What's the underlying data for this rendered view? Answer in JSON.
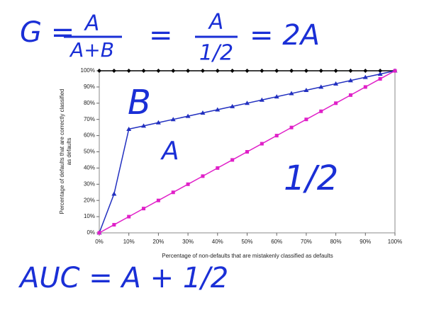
{
  "chart_data": {
    "type": "line",
    "x": [
      0,
      5,
      10,
      15,
      20,
      25,
      30,
      35,
      40,
      45,
      50,
      55,
      60,
      65,
      70,
      75,
      80,
      85,
      90,
      95,
      100
    ],
    "series": [
      {
        "color": "#000000",
        "marker": "diamond",
        "values": [
          100,
          100,
          100,
          100,
          100,
          100,
          100,
          100,
          100,
          100,
          100,
          100,
          100,
          100,
          100,
          100,
          100,
          100,
          100,
          100,
          100
        ]
      },
      {
        "color": "#2230c0",
        "marker": "triangle",
        "values": [
          0,
          24,
          64,
          66,
          68,
          70,
          72,
          74,
          76,
          78,
          80,
          82,
          84,
          86,
          88,
          90,
          92,
          94,
          96,
          98,
          100
        ]
      },
      {
        "color": "#e020c8",
        "marker": "square",
        "values": [
          0,
          5,
          10,
          15,
          20,
          25,
          30,
          35,
          40,
          45,
          50,
          55,
          60,
          65,
          70,
          75,
          80,
          85,
          90,
          95,
          100
        ]
      }
    ],
    "xlim": [
      0,
      100
    ],
    "ylim": [
      0,
      100
    ],
    "xticks": [
      {
        "value": 0,
        "label": "0%"
      },
      {
        "value": 10,
        "label": "10%"
      },
      {
        "value": 20,
        "label": "20%"
      },
      {
        "value": 30,
        "label": "30%"
      },
      {
        "value": 40,
        "label": "40%"
      },
      {
        "value": 50,
        "label": "50%"
      },
      {
        "value": 60,
        "label": "60%"
      },
      {
        "value": 70,
        "label": "70%"
      },
      {
        "value": 80,
        "label": "80%"
      },
      {
        "value": 90,
        "label": "90%"
      },
      {
        "value": 100,
        "label": "100%"
      }
    ],
    "yticks": [
      {
        "value": 0,
        "label": "0%"
      },
      {
        "value": 10,
        "label": "10%"
      },
      {
        "value": 20,
        "label": "20%"
      },
      {
        "value": 30,
        "label": "30%"
      },
      {
        "value": 40,
        "label": "40%"
      },
      {
        "value": 50,
        "label": "50%"
      },
      {
        "value": 60,
        "label": "60%"
      },
      {
        "value": 70,
        "label": "70%"
      },
      {
        "value": 80,
        "label": "80%"
      },
      {
        "value": 90,
        "label": "90%"
      },
      {
        "value": 100,
        "label": "100%"
      }
    ],
    "x_label": "Percentage of non-defaults that are mistakenly classified as defaults",
    "y_label": [
      "Percentage of defaults that are correctly classified",
      "as defaults"
    ],
    "annotations": [
      "G =",
      "A",
      "A+B",
      "=",
      "A",
      "1/2",
      "= 2A",
      "B",
      "A",
      "1/2",
      "AUC = A + 1/2"
    ]
  }
}
